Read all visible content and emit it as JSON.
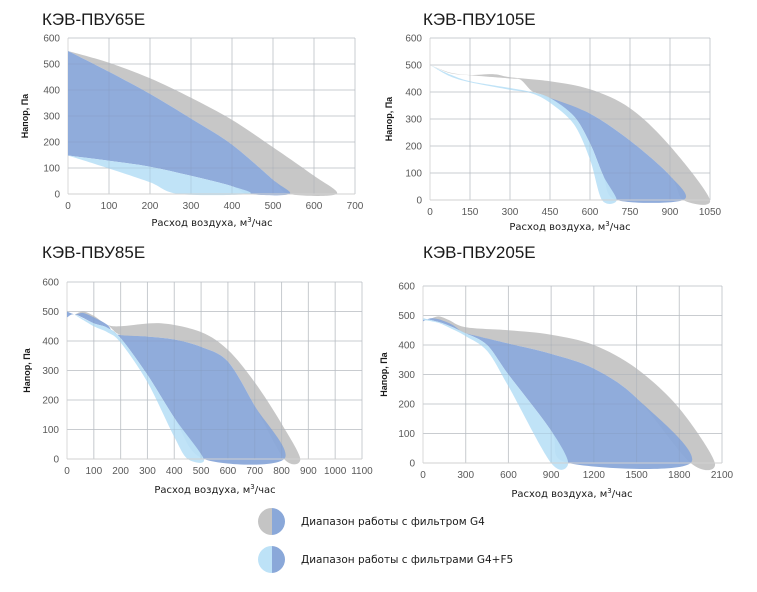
{
  "colors": {
    "g4_gray": "#c4c4c4",
    "g4_blue": "#8aa8d9",
    "g4f5_light": "#bde2f7",
    "grid": "#d9d9d9",
    "axis": "#d0d0d0"
  },
  "legend": [
    {
      "label": "Диапазон работы с фильтром G4",
      "left_color": "#c4c4c4",
      "right_color": "#8aa8d9"
    },
    {
      "label": "Диапазон работы с фильтрами G4+F5",
      "left_color": "#bde2f7",
      "right_color": "#8aa8d9"
    }
  ],
  "chart_data": [
    {
      "type": "area",
      "title": "КЭВ-ПВУ65Е",
      "xlabel": "Расход воздуха, м³/час",
      "xlabel_main": "Расход воздуха, м",
      "xlabel_sup": "3",
      "xlabel_tail": "/час",
      "ylabel": "Напор, Па",
      "xlim": [
        0,
        700
      ],
      "ylim": [
        0,
        600
      ],
      "xticks": [
        "0",
        "100",
        "200",
        "300",
        "400",
        "500",
        "600",
        "700"
      ],
      "yticks": [
        "0",
        "100",
        "200",
        "300",
        "400",
        "500",
        "600"
      ],
      "grid": true,
      "series": [
        {
          "name": "G4 max (gray)",
          "color": "#c4c4c4",
          "points": [
            [
              0,
              550
            ],
            [
              100,
              505
            ],
            [
              200,
              445
            ],
            [
              300,
              370
            ],
            [
              400,
              285
            ],
            [
              500,
              180
            ],
            [
              600,
              70
            ],
            [
              655,
              0
            ],
            [
              540,
              0
            ],
            [
              500,
              55
            ],
            [
              400,
              190
            ],
            [
              300,
              290
            ],
            [
              200,
              385
            ],
            [
              100,
              470
            ],
            [
              0,
              550
            ]
          ]
        },
        {
          "name": "G4 range (blue)",
          "color": "#8aa8d9",
          "points": [
            [
              0,
              550
            ],
            [
              100,
              470
            ],
            [
              200,
              385
            ],
            [
              300,
              290
            ],
            [
              400,
              190
            ],
            [
              500,
              55
            ],
            [
              540,
              0
            ],
            [
              440,
              0
            ],
            [
              400,
              30
            ],
            [
              300,
              70
            ],
            [
              200,
              105
            ],
            [
              100,
              128
            ],
            [
              0,
              148
            ]
          ]
        },
        {
          "name": "G4+F5 range (light blue)",
          "color": "#bde2f7",
          "points": [
            [
              0,
              148
            ],
            [
              100,
              128
            ],
            [
              200,
              105
            ],
            [
              300,
              70
            ],
            [
              400,
              30
            ],
            [
              440,
              0
            ],
            [
              270,
              0
            ],
            [
              200,
              45
            ],
            [
              100,
              98
            ],
            [
              0,
              148
            ]
          ]
        }
      ]
    },
    {
      "type": "area",
      "title": "КЭВ-ПВУ105Е",
      "xlabel": "Расход воздуха, м³/час",
      "xlabel_main": "Расход воздуха, м",
      "xlabel_sup": "3",
      "xlabel_tail": "/час",
      "ylabel": "Напор, Па",
      "xlim": [
        0,
        1050
      ],
      "ylim": [
        0,
        600
      ],
      "xticks": [
        "0",
        "150",
        "300",
        "450",
        "600",
        "750",
        "900",
        "1050"
      ],
      "yticks": [
        "0",
        "100",
        "200",
        "300",
        "400",
        "500",
        "600"
      ],
      "grid": true,
      "series": [
        {
          "name": "G4 max (gray)",
          "color": "#c4c4c4",
          "points": [
            [
              0,
              500
            ],
            [
              75,
              472
            ],
            [
              150,
              463
            ],
            [
              240,
              466
            ],
            [
              300,
              455
            ],
            [
              450,
              440
            ],
            [
              600,
              410
            ],
            [
              750,
              340
            ],
            [
              900,
              200
            ],
            [
              1050,
              0
            ],
            [
              950,
              0
            ],
            [
              900,
              90
            ],
            [
              750,
              220
            ],
            [
              600,
              320
            ],
            [
              450,
              375
            ],
            [
              420,
              390
            ],
            [
              380,
              405
            ],
            [
              340,
              445
            ],
            [
              300,
              450
            ],
            [
              150,
              462
            ],
            [
              75,
              470
            ],
            [
              0,
              500
            ]
          ]
        },
        {
          "name": "G4 range (blue)",
          "color": "#8aa8d9",
          "points": [
            [
              450,
              378
            ],
            [
              600,
              320
            ],
            [
              750,
              220
            ],
            [
              900,
              90
            ],
            [
              950,
              0
            ],
            [
              700,
              0
            ],
            [
              650,
              90
            ],
            [
              600,
              210
            ],
            [
              540,
              310
            ],
            [
              450,
              378
            ]
          ]
        },
        {
          "name": "G4+F5 range (light blue)",
          "color": "#bde2f7",
          "points": [
            [
              0,
              500
            ],
            [
              75,
              465
            ],
            [
              150,
              440
            ],
            [
              300,
              415
            ],
            [
              380,
              400
            ],
            [
              450,
              378
            ],
            [
              540,
              310
            ],
            [
              600,
              210
            ],
            [
              650,
              90
            ],
            [
              700,
              0
            ],
            [
              645,
              0
            ],
            [
              600,
              150
            ],
            [
              540,
              280
            ],
            [
              450,
              360
            ],
            [
              380,
              395
            ],
            [
              300,
              408
            ],
            [
              150,
              436
            ],
            [
              75,
              458
            ],
            [
              0,
              500
            ]
          ]
        }
      ]
    },
    {
      "type": "area",
      "title": "КЭВ-ПВУ85Е",
      "xlabel": "Расход воздуха, м³/час",
      "xlabel_main": "Расход воздуха, м",
      "xlabel_sup": "3",
      "xlabel_tail": "/час",
      "ylabel": "Напор, Па",
      "xlim": [
        0,
        1100
      ],
      "ylim": [
        0,
        600
      ],
      "xticks": [
        "0",
        "100",
        "200",
        "300",
        "400",
        "500",
        "600",
        "700",
        "800",
        "900",
        "1000",
        "1100"
      ],
      "yticks": [
        "0",
        "100",
        "200",
        "300",
        "400",
        "500",
        "600"
      ],
      "grid": true,
      "series": [
        {
          "name": "G4 max (gray)",
          "color": "#c4c4c4",
          "points": [
            [
              30,
              490
            ],
            [
              60,
              500
            ],
            [
              100,
              485
            ],
            [
              150,
              455
            ],
            [
              200,
              450
            ],
            [
              350,
              460
            ],
            [
              500,
              430
            ],
            [
              600,
              370
            ],
            [
              700,
              260
            ],
            [
              800,
              120
            ],
            [
              870,
              0
            ],
            [
              810,
              0
            ],
            [
              700,
              180
            ],
            [
              600,
              330
            ],
            [
              500,
              380
            ],
            [
              400,
              405
            ],
            [
              300,
              415
            ],
            [
              200,
              420
            ],
            [
              150,
              455
            ],
            [
              100,
              470
            ],
            [
              30,
              490
            ]
          ]
        },
        {
          "name": "G4 range (blue)",
          "color": "#8aa8d9",
          "points": [
            [
              0,
              500
            ],
            [
              30,
              490
            ],
            [
              60,
              495
            ],
            [
              100,
              480
            ],
            [
              150,
              455
            ],
            [
              170,
              432
            ],
            [
              200,
              420
            ],
            [
              300,
              415
            ],
            [
              400,
              405
            ],
            [
              500,
              380
            ],
            [
              600,
              330
            ],
            [
              700,
              180
            ],
            [
              810,
              0
            ],
            [
              510,
              0
            ],
            [
              400,
              140
            ],
            [
              300,
              285
            ],
            [
              200,
              410
            ],
            [
              150,
              445
            ],
            [
              100,
              460
            ],
            [
              30,
              490
            ],
            [
              0,
              480
            ]
          ]
        },
        {
          "name": "G4+F5 range (light blue)",
          "color": "#bde2f7",
          "points": [
            [
              30,
              490
            ],
            [
              100,
              460
            ],
            [
              150,
              445
            ],
            [
              200,
              410
            ],
            [
              300,
              285
            ],
            [
              400,
              140
            ],
            [
              510,
              0
            ],
            [
              450,
              0
            ],
            [
              400,
              75
            ],
            [
              300,
              260
            ],
            [
              200,
              395
            ],
            [
              150,
              430
            ],
            [
              100,
              450
            ],
            [
              30,
              488
            ]
          ]
        }
      ]
    },
    {
      "type": "area",
      "title": "КЭВ-ПВУ205Е",
      "xlabel": "Расход воздуха, м³/час",
      "xlabel_main": "Расход воздуха, м",
      "xlabel_sup": "3",
      "xlabel_tail": "/час",
      "ylabel": "Напор, Па",
      "xlim": [
        0,
        2100
      ],
      "ylim": [
        0,
        600
      ],
      "xticks": [
        "0",
        "300",
        "600",
        "900",
        "1200",
        "1500",
        "1800",
        "2100"
      ],
      "yticks": [
        "0",
        "100",
        "200",
        "300",
        "400",
        "500",
        "600"
      ],
      "grid": true,
      "series": [
        {
          "name": "G4 max (gray)",
          "color": "#c4c4c4",
          "points": [
            [
              50,
              488
            ],
            [
              110,
              497
            ],
            [
              180,
              485
            ],
            [
              300,
              460
            ],
            [
              600,
              450
            ],
            [
              900,
              435
            ],
            [
              1200,
              400
            ],
            [
              1500,
              320
            ],
            [
              1800,
              185
            ],
            [
              2050,
              0
            ],
            [
              1880,
              0
            ],
            [
              1500,
              220
            ],
            [
              1200,
              320
            ],
            [
              900,
              370
            ],
            [
              600,
              405
            ],
            [
              300,
              440
            ],
            [
              200,
              465
            ],
            [
              110,
              485
            ],
            [
              50,
              488
            ]
          ]
        },
        {
          "name": "G4 range (blue)",
          "color": "#8aa8d9",
          "points": [
            [
              0,
              480
            ],
            [
              50,
              490
            ],
            [
              110,
              487
            ],
            [
              200,
              470
            ],
            [
              260,
              450
            ],
            [
              300,
              440
            ],
            [
              600,
              405
            ],
            [
              900,
              370
            ],
            [
              1200,
              320
            ],
            [
              1500,
              220
            ],
            [
              1880,
              0
            ],
            [
              1020,
              0
            ],
            [
              900,
              110
            ],
            [
              600,
              300
            ],
            [
              450,
              400
            ],
            [
              300,
              440
            ],
            [
              200,
              462
            ],
            [
              110,
              478
            ],
            [
              0,
              490
            ]
          ]
        },
        {
          "name": "G4+F5 range (light blue)",
          "color": "#bde2f7",
          "points": [
            [
              0,
              490
            ],
            [
              110,
              478
            ],
            [
              200,
              462
            ],
            [
              300,
              440
            ],
            [
              450,
              400
            ],
            [
              600,
              300
            ],
            [
              900,
              110
            ],
            [
              1020,
              0
            ],
            [
              900,
              0
            ],
            [
              600,
              260
            ],
            [
              450,
              380
            ],
            [
              300,
              430
            ],
            [
              200,
              455
            ],
            [
              110,
              475
            ],
            [
              0,
              485
            ]
          ]
        }
      ]
    }
  ]
}
